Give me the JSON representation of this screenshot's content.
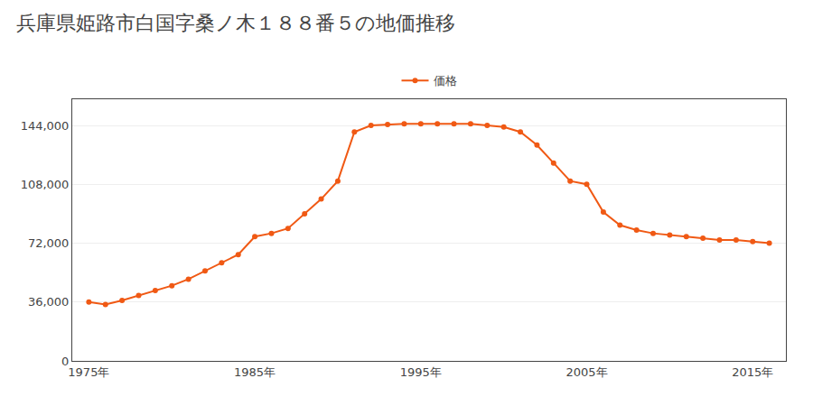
{
  "chart_data": {
    "type": "line",
    "title": "兵庫県姫路市白国字桑ノ木１８８番５の地価推移",
    "x": [
      1975,
      1976,
      1977,
      1978,
      1979,
      1980,
      1981,
      1982,
      1983,
      1984,
      1985,
      1986,
      1987,
      1988,
      1989,
      1990,
      1991,
      1992,
      1993,
      1994,
      1995,
      1996,
      1997,
      1998,
      1999,
      2000,
      2001,
      2002,
      2003,
      2004,
      2005,
      2006,
      2007,
      2008,
      2009,
      2010,
      2011,
      2012,
      2013,
      2014,
      2015,
      2016
    ],
    "series": [
      {
        "name": "価格",
        "color": "#f05914",
        "marker": "circle",
        "values": [
          36000,
          34500,
          37000,
          40000,
          43000,
          46000,
          50000,
          55000,
          60000,
          65000,
          76000,
          78000,
          81000,
          90000,
          99000,
          110000,
          140000,
          144000,
          144500,
          145000,
          145000,
          145000,
          145000,
          145000,
          144000,
          143000,
          140000,
          132000,
          121000,
          110000,
          108000,
          91000,
          83000,
          80000,
          78000,
          77000,
          76000,
          75000,
          74000,
          74000,
          73000,
          72000
        ]
      }
    ],
    "xlim": [
      1974,
      2017
    ],
    "xticks": [
      {
        "value": 1975,
        "label": "1975年"
      },
      {
        "value": 1985,
        "label": "1985年"
      },
      {
        "value": 1995,
        "label": "1995年"
      },
      {
        "value": 2005,
        "label": "2005年"
      },
      {
        "value": 2015,
        "label": "2015年"
      }
    ],
    "ylim": [
      0,
      160000
    ],
    "yticks": [
      0,
      {
        "value": 36000,
        "label": "36,000"
      },
      {
        "value": 72000,
        "label": "72,000"
      },
      {
        "value": 108000,
        "label": "108,000"
      },
      {
        "value": 144000,
        "label": "144,000"
      }
    ],
    "grid": "y",
    "legend": "top"
  }
}
